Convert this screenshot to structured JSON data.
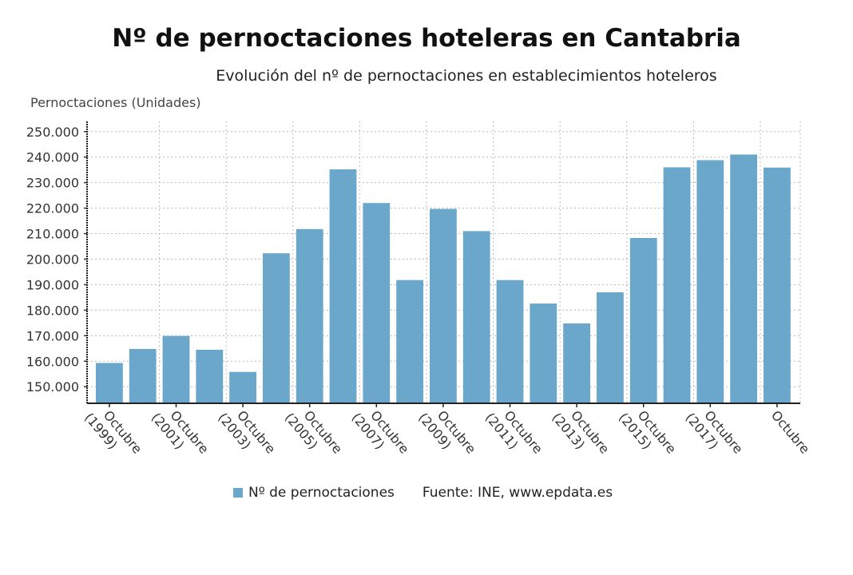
{
  "chart_data": {
    "type": "bar",
    "title": "Nº de pernoctaciones hoteleras en Cantabria",
    "subtitle": "Evolución del nº de pernoctaciones en establecimientos hoteleros",
    "ylabel": "Pernoctaciones (Unidades)",
    "xlabel": "",
    "ylim": [
      143500,
      254000
    ],
    "yticks": [
      "150.000",
      "160.000",
      "170.000",
      "180.000",
      "190.000",
      "200.000",
      "210.000",
      "220.000",
      "230.000",
      "240.000",
      "250.000"
    ],
    "ytick_values": [
      150000,
      160000,
      170000,
      180000,
      190000,
      200000,
      210000,
      220000,
      230000,
      240000,
      250000
    ],
    "xtick_labels": [
      "Octubre (1999)",
      "Octubre (2001)",
      "Octubre (2003)",
      "Octubre (2005)",
      "Octubre (2007)",
      "Octubre (2009)",
      "Octubre (2011)",
      "Octubre (2013)",
      "Octubre (2015)",
      "Octubre (2017)",
      "Octubre"
    ],
    "categories": [
      "Octubre (1999)",
      "Octubre (2000)",
      "Octubre (2001)",
      "Octubre (2002)",
      "Octubre (2003)",
      "Octubre (2004)",
      "Octubre (2005)",
      "Octubre (2006)",
      "Octubre (2007)",
      "Octubre (2008)",
      "Octubre (2009)",
      "Octubre (2010)",
      "Octubre (2011)",
      "Octubre (2012)",
      "Octubre (2013)",
      "Octubre (2014)",
      "Octubre (2015)",
      "Octubre (2016)",
      "Octubre (2017)",
      "Octubre (2018)",
      "Octubre (2019)"
    ],
    "series": [
      {
        "name": "Nº de pernoctaciones",
        "color": "#6aa7cb",
        "values": [
          159300,
          164800,
          169900,
          164500,
          155800,
          202300,
          211800,
          235200,
          222000,
          191800,
          219700,
          211000,
          191800,
          182600,
          174800,
          187000,
          208300,
          236000,
          238800,
          241000,
          235900
        ]
      }
    ],
    "grid": true,
    "legend": "bottom",
    "source": "Fuente: INE, www.epdata.es"
  }
}
